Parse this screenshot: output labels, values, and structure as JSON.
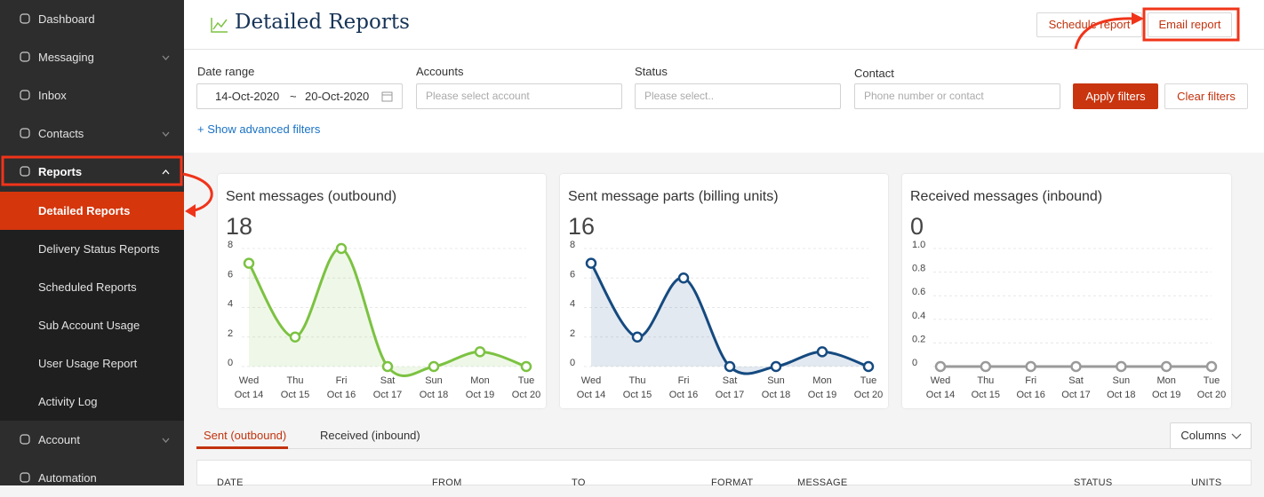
{
  "nav": [
    {
      "label": "Dashboard"
    },
    {
      "label": "Messaging",
      "expandable": true
    },
    {
      "label": "Inbox"
    },
    {
      "label": "Contacts",
      "expandable": true
    },
    {
      "label": "Reports",
      "expandable": true,
      "expanded": true,
      "children": [
        {
          "label": "Detailed Reports",
          "active": true
        },
        {
          "label": "Delivery Status Reports"
        },
        {
          "label": "Scheduled Reports"
        },
        {
          "label": "Sub Account Usage"
        },
        {
          "label": "User Usage Report"
        },
        {
          "label": "Activity Log"
        }
      ]
    },
    {
      "label": "Account",
      "expandable": true
    },
    {
      "label": "Automation"
    }
  ],
  "header": {
    "title": "Detailed Reports",
    "buttons": [
      "Schedule report",
      "Email report"
    ]
  },
  "filters": {
    "date_range": {
      "label": "Date range",
      "from": "14-Oct-2020",
      "separator": "~",
      "to": "20-Oct-2020"
    },
    "accounts": {
      "label": "Accounts",
      "placeholder": "Please select account"
    },
    "status": {
      "label": "Status",
      "placeholder": "Please select.."
    },
    "contact": {
      "label": "Contact",
      "placeholder": "Phone number or contact"
    },
    "buttons": [
      "Apply filters",
      "Clear filters"
    ],
    "advanced_link": "+ Show advanced filters"
  },
  "chart_data": [
    {
      "type": "line",
      "title": "Sent messages (outbound)",
      "total": 18,
      "categories": [
        [
          "Wed",
          "Oct 14"
        ],
        [
          "Thu",
          "Oct 15"
        ],
        [
          "Fri",
          "Oct 16"
        ],
        [
          "Sat",
          "Oct 17"
        ],
        [
          "Sun",
          "Oct 18"
        ],
        [
          "Mon",
          "Oct 19"
        ],
        [
          "Tue",
          "Oct 20"
        ]
      ],
      "values": [
        7,
        2,
        8,
        0,
        0,
        1,
        0
      ],
      "color": "#7cc242",
      "area": true,
      "ylim": [
        0,
        8
      ],
      "yticks": [
        0,
        2,
        4,
        6,
        8
      ],
      "grid": true
    },
    {
      "type": "line",
      "title": "Sent message parts (billing units)",
      "total": 16,
      "categories": [
        [
          "Wed",
          "Oct 14"
        ],
        [
          "Thu",
          "Oct 15"
        ],
        [
          "Fri",
          "Oct 16"
        ],
        [
          "Sat",
          "Oct 17"
        ],
        [
          "Sun",
          "Oct 18"
        ],
        [
          "Mon",
          "Oct 19"
        ],
        [
          "Tue",
          "Oct 20"
        ]
      ],
      "values": [
        7,
        2,
        6,
        0,
        0,
        1,
        0
      ],
      "color": "#154a80",
      "area": true,
      "ylim": [
        0,
        8
      ],
      "yticks": [
        0,
        2,
        4,
        6,
        8
      ],
      "grid": true
    },
    {
      "type": "line",
      "title": "Received messages (inbound)",
      "total": 0,
      "categories": [
        [
          "Wed",
          "Oct 14"
        ],
        [
          "Thu",
          "Oct 15"
        ],
        [
          "Fri",
          "Oct 16"
        ],
        [
          "Sat",
          "Oct 17"
        ],
        [
          "Sun",
          "Oct 18"
        ],
        [
          "Mon",
          "Oct 19"
        ],
        [
          "Tue",
          "Oct 20"
        ]
      ],
      "values": [
        0,
        0,
        0,
        0,
        0,
        0,
        0
      ],
      "color": "#9a9a9a",
      "area": false,
      "ylim": [
        0,
        1
      ],
      "yticks": [
        0,
        0.2,
        0.4,
        0.6,
        0.8,
        {
          "value": 1,
          "label": "1.0"
        }
      ],
      "grid": true
    }
  ],
  "tabs": [
    "Sent (outbound)",
    "Received (inbound)"
  ],
  "columns_button": "Columns",
  "table": {
    "headers": [
      "DATE",
      "FROM",
      "TO",
      "FORMAT",
      "MESSAGE",
      "STATUS",
      "UNITS"
    ]
  }
}
